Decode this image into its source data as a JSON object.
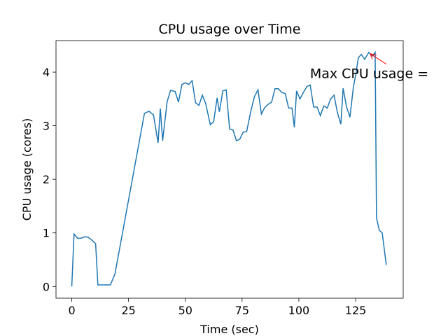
{
  "chart_data": {
    "type": "line",
    "title": "CPU usage over Time",
    "xlabel": "Time (sec)",
    "ylabel": "CPU usage (cores)",
    "x": [
      0,
      1,
      2.5,
      4,
      6,
      7.5,
      9,
      10.5,
      11.5,
      13,
      15,
      17,
      19,
      32,
      34,
      36,
      38,
      39,
      40,
      42,
      43.5,
      45.5,
      47,
      48.5,
      50,
      51.5,
      53,
      54.5,
      56,
      57.5,
      59,
      61,
      62.5,
      64,
      65,
      66.5,
      68,
      69.5,
      71,
      72.5,
      74,
      75.5,
      77,
      79,
      80.5,
      82,
      83.5,
      85,
      86.5,
      88,
      89.5,
      91,
      92.5,
      94,
      95.5,
      97,
      98,
      99,
      100.5,
      102,
      103.5,
      105,
      106.5,
      108,
      109.5,
      111,
      112.5,
      114,
      115.5,
      117,
      118.5,
      119.5,
      121,
      122.5,
      124,
      125,
      126.2,
      127.5,
      129,
      130.8,
      132.4,
      133.6,
      134.2,
      135.4,
      136.7,
      138.5
    ],
    "series": [
      {
        "name": "CPU usage",
        "color": "#1f77b4",
        "values": [
          0,
          0.98,
          0.9,
          0.9,
          0.93,
          0.91,
          0.86,
          0.8,
          0.03,
          0.03,
          0.03,
          0.03,
          0.23,
          3.23,
          3.27,
          3.2,
          2.68,
          3.32,
          2.72,
          3.45,
          3.66,
          3.64,
          3.44,
          3.77,
          3.8,
          3.77,
          3.84,
          3.43,
          3.38,
          3.57,
          3.41,
          3.02,
          3.08,
          3.52,
          3.26,
          3.65,
          3.67,
          2.94,
          2.92,
          2.72,
          2.75,
          2.88,
          2.89,
          3.3,
          3.55,
          3.67,
          3.22,
          3.34,
          3.4,
          3.44,
          3.69,
          3.69,
          3.62,
          3.6,
          3.33,
          3.33,
          2.97,
          3.65,
          3.5,
          3.62,
          3.73,
          3.76,
          3.35,
          3.35,
          3.19,
          3.37,
          3.33,
          3.5,
          3.57,
          3.24,
          3.03,
          3.7,
          3.35,
          3.16,
          3.72,
          3.94,
          4.27,
          4.33,
          4.24,
          4.37,
          4.3,
          4.37,
          1.28,
          1.05,
          1.0,
          0.4
        ]
      }
    ],
    "xlim": [
      -6.95,
      145.95
    ],
    "ylim": [
      -0.2185,
      4.5885
    ],
    "xticks": [
      0,
      25,
      50,
      75,
      100,
      125
    ],
    "yticks": [
      0,
      1,
      2,
      3,
      4
    ],
    "annotation": {
      "text": "Max CPU usage =",
      "color": "red"
    }
  }
}
